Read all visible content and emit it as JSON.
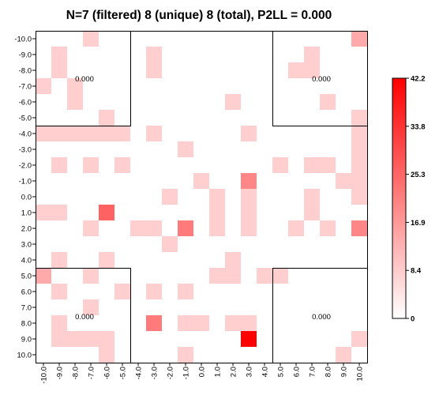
{
  "chart_data": {
    "type": "heatmap",
    "title": "N=7 (filtered) 8 (unique) 8 (total), P2LL = 0.000",
    "xlabel": "",
    "ylabel": "",
    "x_ticks": [
      "-10.0",
      "-9.0",
      "-8.0",
      "-7.0",
      "-6.0",
      "-5.0",
      "-4.0",
      "-3.0",
      "-2.0",
      "-1.0",
      "0.0",
      "1.0",
      "2.0",
      "3.0",
      "4.0",
      "5.0",
      "6.0",
      "7.0",
      "8.0",
      "9.0",
      "10.0"
    ],
    "y_ticks": [
      "-10.0",
      "-9.0",
      "-8.0",
      "-7.0",
      "-6.0",
      "-5.0",
      "-4.0",
      "-3.0",
      "-2.0",
      "-1.0",
      "0.0",
      "1.0",
      "2.0",
      "3.0",
      "4.0",
      "5.0",
      "6.0",
      "7.0",
      "8.0",
      "9.0",
      "10.0"
    ],
    "grid": false,
    "colorbar": {
      "min": 0,
      "max": 42.2,
      "ticks": [
        "0",
        "8.4",
        "16.9",
        "25.3",
        "33.8",
        "42.2"
      ],
      "tick_values": [
        0,
        8.44,
        16.88,
        25.32,
        33.76,
        42.2
      ],
      "color_low": "#ffffff",
      "color_high": "#ff0000"
    },
    "corner_labels": [
      "0.000",
      "0.000",
      "0.000",
      "0.000"
    ],
    "cells": [
      {
        "x": -7,
        "y": -10,
        "v": 8
      },
      {
        "x": 10,
        "y": -10,
        "v": 14
      },
      {
        "x": -9,
        "y": -9,
        "v": 8
      },
      {
        "x": -3,
        "y": -9,
        "v": 8
      },
      {
        "x": 7,
        "y": -9,
        "v": 8
      },
      {
        "x": -9,
        "y": -8,
        "v": 8
      },
      {
        "x": -3,
        "y": -8,
        "v": 8
      },
      {
        "x": 6,
        "y": -8,
        "v": 8
      },
      {
        "x": 7,
        "y": -8,
        "v": 8
      },
      {
        "x": -10,
        "y": -7,
        "v": 8
      },
      {
        "x": -8,
        "y": -7,
        "v": 8
      },
      {
        "x": -8,
        "y": -6,
        "v": 8
      },
      {
        "x": 2,
        "y": -6,
        "v": 8
      },
      {
        "x": 8,
        "y": -6,
        "v": 8
      },
      {
        "x": -6,
        "y": -5,
        "v": 8
      },
      {
        "x": 10,
        "y": -5,
        "v": 8
      },
      {
        "x": -10,
        "y": -4,
        "v": 8
      },
      {
        "x": -9,
        "y": -4,
        "v": 8
      },
      {
        "x": -8,
        "y": -4,
        "v": 8
      },
      {
        "x": -7,
        "y": -4,
        "v": 8
      },
      {
        "x": -6,
        "y": -4,
        "v": 8
      },
      {
        "x": -5,
        "y": -4,
        "v": 8
      },
      {
        "x": -3,
        "y": -4,
        "v": 8
      },
      {
        "x": 3,
        "y": -4,
        "v": 8
      },
      {
        "x": 10,
        "y": -4,
        "v": 8
      },
      {
        "x": -1,
        "y": -3,
        "v": 8
      },
      {
        "x": 10,
        "y": -3,
        "v": 8
      },
      {
        "x": -9,
        "y": -2,
        "v": 8
      },
      {
        "x": -7,
        "y": -2,
        "v": 8
      },
      {
        "x": -5,
        "y": -2,
        "v": 8
      },
      {
        "x": 5,
        "y": -2,
        "v": 8
      },
      {
        "x": 7,
        "y": -2,
        "v": 8
      },
      {
        "x": 8,
        "y": -2,
        "v": 8
      },
      {
        "x": 10,
        "y": -2,
        "v": 8
      },
      {
        "x": 0,
        "y": -1,
        "v": 8
      },
      {
        "x": 3,
        "y": -1,
        "v": 20
      },
      {
        "x": 9,
        "y": -1,
        "v": 8
      },
      {
        "x": 10,
        "y": -1,
        "v": 8
      },
      {
        "x": -2,
        "y": 0,
        "v": 8
      },
      {
        "x": 1,
        "y": 0,
        "v": 8
      },
      {
        "x": 3,
        "y": 0,
        "v": 8
      },
      {
        "x": 7,
        "y": 0,
        "v": 8
      },
      {
        "x": 10,
        "y": 0,
        "v": 8
      },
      {
        "x": -10,
        "y": 1,
        "v": 8
      },
      {
        "x": -9,
        "y": 1,
        "v": 8
      },
      {
        "x": -6,
        "y": 1,
        "v": 26
      },
      {
        "x": 1,
        "y": 1,
        "v": 8
      },
      {
        "x": 3,
        "y": 1,
        "v": 8
      },
      {
        "x": 7,
        "y": 1,
        "v": 8
      },
      {
        "x": -7,
        "y": 2,
        "v": 8
      },
      {
        "x": -4,
        "y": 2,
        "v": 8
      },
      {
        "x": -3,
        "y": 2,
        "v": 8
      },
      {
        "x": -1,
        "y": 2,
        "v": 22
      },
      {
        "x": 1,
        "y": 2,
        "v": 8
      },
      {
        "x": 3,
        "y": 2,
        "v": 8
      },
      {
        "x": 6,
        "y": 2,
        "v": 8
      },
      {
        "x": 8,
        "y": 2,
        "v": 8
      },
      {
        "x": 10,
        "y": 2,
        "v": 20
      },
      {
        "x": -2,
        "y": 3,
        "v": 8
      },
      {
        "x": -9,
        "y": 4,
        "v": 8
      },
      {
        "x": -6,
        "y": 4,
        "v": 8
      },
      {
        "x": 2,
        "y": 4,
        "v": 8
      },
      {
        "x": -10,
        "y": 5,
        "v": 14
      },
      {
        "x": -7,
        "y": 5,
        "v": 8
      },
      {
        "x": 1,
        "y": 5,
        "v": 8
      },
      {
        "x": 2,
        "y": 5,
        "v": 8
      },
      {
        "x": 4,
        "y": 5,
        "v": 8
      },
      {
        "x": 5,
        "y": 5,
        "v": 8
      },
      {
        "x": -9,
        "y": 6,
        "v": 8
      },
      {
        "x": -5,
        "y": 6,
        "v": 8
      },
      {
        "x": -3,
        "y": 6,
        "v": 8
      },
      {
        "x": -1,
        "y": 6,
        "v": 8
      },
      {
        "x": -7,
        "y": 7,
        "v": 8
      },
      {
        "x": -9,
        "y": 8,
        "v": 8
      },
      {
        "x": -3,
        "y": 8,
        "v": 22
      },
      {
        "x": -1,
        "y": 8,
        "v": 8
      },
      {
        "x": 0,
        "y": 8,
        "v": 8
      },
      {
        "x": 2,
        "y": 8,
        "v": 8
      },
      {
        "x": 3,
        "y": 8,
        "v": 8
      },
      {
        "x": -9,
        "y": 9,
        "v": 8
      },
      {
        "x": -8,
        "y": 9,
        "v": 8
      },
      {
        "x": -7,
        "y": 9,
        "v": 8
      },
      {
        "x": -6,
        "y": 9,
        "v": 8
      },
      {
        "x": 3,
        "y": 9,
        "v": 42.2
      },
      {
        "x": 10,
        "y": 9,
        "v": 8
      },
      {
        "x": -6,
        "y": 10,
        "v": 8
      },
      {
        "x": -1,
        "y": 10,
        "v": 8
      },
      {
        "x": 9,
        "y": 10,
        "v": 8
      }
    ]
  }
}
